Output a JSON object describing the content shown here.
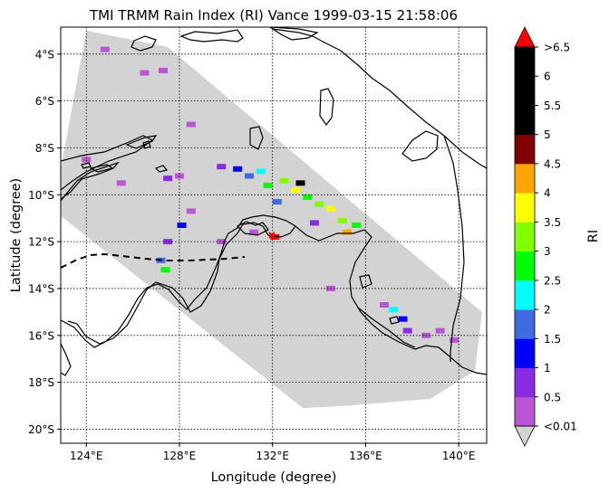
{
  "chart_data": {
    "type": "heatmap",
    "title": "TMI TRMM Rain Index (RI) Vance 1999-03-15 21:58:06",
    "xlabel": "Longitude (degree)",
    "ylabel": "Latitude (degree)",
    "xlim": [
      122.9,
      141.2
    ],
    "ylim": [
      -20.6,
      -2.85
    ],
    "grid": true,
    "x_ticks": [
      {
        "value": 124,
        "label": "124°E"
      },
      {
        "value": 128,
        "label": "128°E"
      },
      {
        "value": 132,
        "label": "132°E"
      },
      {
        "value": 136,
        "label": "136°E"
      },
      {
        "value": 140,
        "label": "140°E"
      }
    ],
    "y_ticks": [
      {
        "value": -4,
        "label": "4°S"
      },
      {
        "value": -6,
        "label": "6°S"
      },
      {
        "value": -8,
        "label": "8°S"
      },
      {
        "value": -10,
        "label": "10°S"
      },
      {
        "value": -12,
        "label": "12°S"
      },
      {
        "value": -14,
        "label": "14°S"
      },
      {
        "value": -16,
        "label": "16°S"
      },
      {
        "value": -18,
        "label": "18°S"
      },
      {
        "value": -20,
        "label": "20°S"
      }
    ],
    "swath": {
      "color": "#d3d3d3",
      "polygon": [
        [
          124.0,
          -3.0
        ],
        [
          127.5,
          -3.7
        ],
        [
          141.0,
          -15.0
        ],
        [
          140.7,
          -17.5
        ],
        [
          138.8,
          -18.7
        ],
        [
          135.2,
          -19.0
        ],
        [
          133.3,
          -19.1
        ],
        [
          122.9,
          -10.9
        ],
        [
          122.9,
          -8.9
        ]
      ]
    },
    "colorbar": {
      "label": "RI",
      "extend": "both",
      "under_color": "#d3d3d3",
      "over_color": "#ff0000",
      "colors": [
        "#ba55d3",
        "#8a2be2",
        "#0000ff",
        "#4169e1",
        "#00ffff",
        "#00ff00",
        "#7fff00",
        "#ffff00",
        "#ffa500",
        "#800000",
        "#000000",
        "#000000",
        "#000000"
      ],
      "tick_labels": [
        "<0.01",
        "0.5",
        "1",
        "1.5",
        "2",
        "2.5",
        "3",
        "3.5",
        "4",
        "4.5",
        "5",
        "5.5",
        "6",
        ">6.5"
      ]
    },
    "rain_cells": [
      {
        "lon": 124.8,
        "lat": -3.8,
        "ri": 0.25
      },
      {
        "lon": 126.5,
        "lat": -4.8,
        "ri": 0.25
      },
      {
        "lon": 127.3,
        "lat": -4.7,
        "ri": 0.25
      },
      {
        "lon": 128.5,
        "lat": -7.0,
        "ri": 0.25
      },
      {
        "lon": 124.0,
        "lat": -8.5,
        "ri": 0.25
      },
      {
        "lon": 125.5,
        "lat": -9.5,
        "ri": 0.25
      },
      {
        "lon": 127.5,
        "lat": -9.3,
        "ri": 0.75
      },
      {
        "lon": 128.0,
        "lat": -9.2,
        "ri": 0.25
      },
      {
        "lon": 129.8,
        "lat": -8.8,
        "ri": 0.75
      },
      {
        "lon": 130.5,
        "lat": -8.9,
        "ri": 1.25
      },
      {
        "lon": 131.0,
        "lat": -9.2,
        "ri": 1.75
      },
      {
        "lon": 131.5,
        "lat": -9.0,
        "ri": 2.25
      },
      {
        "lon": 131.8,
        "lat": -9.6,
        "ri": 2.75
      },
      {
        "lon": 132.2,
        "lat": -10.3,
        "ri": 1.75
      },
      {
        "lon": 132.5,
        "lat": -9.4,
        "ri": 3.25
      },
      {
        "lon": 133.0,
        "lat": -9.8,
        "ri": 3.75
      },
      {
        "lon": 133.5,
        "lat": -10.1,
        "ri": 2.75
      },
      {
        "lon": 134.0,
        "lat": -10.4,
        "ri": 3.25
      },
      {
        "lon": 134.5,
        "lat": -10.6,
        "ri": 3.75
      },
      {
        "lon": 135.0,
        "lat": -11.1,
        "ri": 3.25
      },
      {
        "lon": 135.6,
        "lat": -11.3,
        "ri": 2.75
      },
      {
        "lon": 133.2,
        "lat": -9.5,
        "ri": 5.25
      },
      {
        "lon": 135.2,
        "lat": -11.6,
        "ri": 4.25
      },
      {
        "lon": 133.8,
        "lat": -11.2,
        "ri": 0.75
      },
      {
        "lon": 128.5,
        "lat": -10.7,
        "ri": 0.25
      },
      {
        "lon": 127.5,
        "lat": -12.0,
        "ri": 0.75
      },
      {
        "lon": 127.2,
        "lat": -12.8,
        "ri": 1.75
      },
      {
        "lon": 127.4,
        "lat": -13.2,
        "ri": 2.75
      },
      {
        "lon": 128.1,
        "lat": -11.3,
        "ri": 1.25
      },
      {
        "lon": 129.8,
        "lat": -12.0,
        "ri": 0.25
      },
      {
        "lon": 131.2,
        "lat": -11.6,
        "ri": 0.25
      },
      {
        "lon": 132.1,
        "lat": -11.8,
        "ri": 6.75
      },
      {
        "lon": 134.5,
        "lat": -14.0,
        "ri": 0.25
      },
      {
        "lon": 136.8,
        "lat": -14.7,
        "ri": 0.25
      },
      {
        "lon": 137.2,
        "lat": -14.9,
        "ri": 2.25
      },
      {
        "lon": 137.6,
        "lat": -15.3,
        "ri": 1.25
      },
      {
        "lon": 137.8,
        "lat": -15.8,
        "ri": 0.75
      },
      {
        "lon": 138.6,
        "lat": -16.0,
        "ri": 0.25
      },
      {
        "lon": 139.2,
        "lat": -15.8,
        "ri": 0.25
      },
      {
        "lon": 139.8,
        "lat": -16.2,
        "ri": 0.25
      }
    ]
  }
}
